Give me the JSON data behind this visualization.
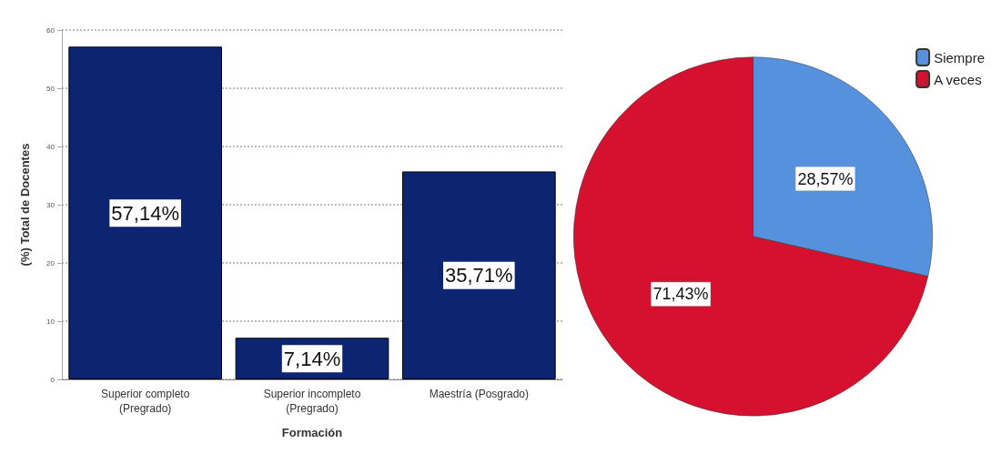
{
  "chart_data": [
    {
      "type": "bar",
      "xlabel": "Formación",
      "ylabel": "(%) Total de Docentes",
      "categories": [
        "Superior completo\n(Pregrado)",
        "Superior incompleto\n(Pregrado)",
        "Maestría (Posgrado)"
      ],
      "values": [
        57.14,
        7.14,
        35.71
      ],
      "value_labels": [
        "57,14%",
        "7,14%",
        "35,71%"
      ],
      "color": "#0d2470",
      "ylim": [
        0,
        60
      ],
      "yticks": [
        0,
        10,
        20,
        30,
        40,
        50,
        60
      ],
      "grid": "y"
    },
    {
      "type": "pie",
      "categories": [
        "Siempre",
        "A veces"
      ],
      "values": [
        28.57,
        71.43
      ],
      "colors": [
        "#5591dc",
        "#d6112f"
      ],
      "value_labels": [
        "28,57%",
        "71,43%"
      ],
      "legend": "top right"
    }
  ]
}
